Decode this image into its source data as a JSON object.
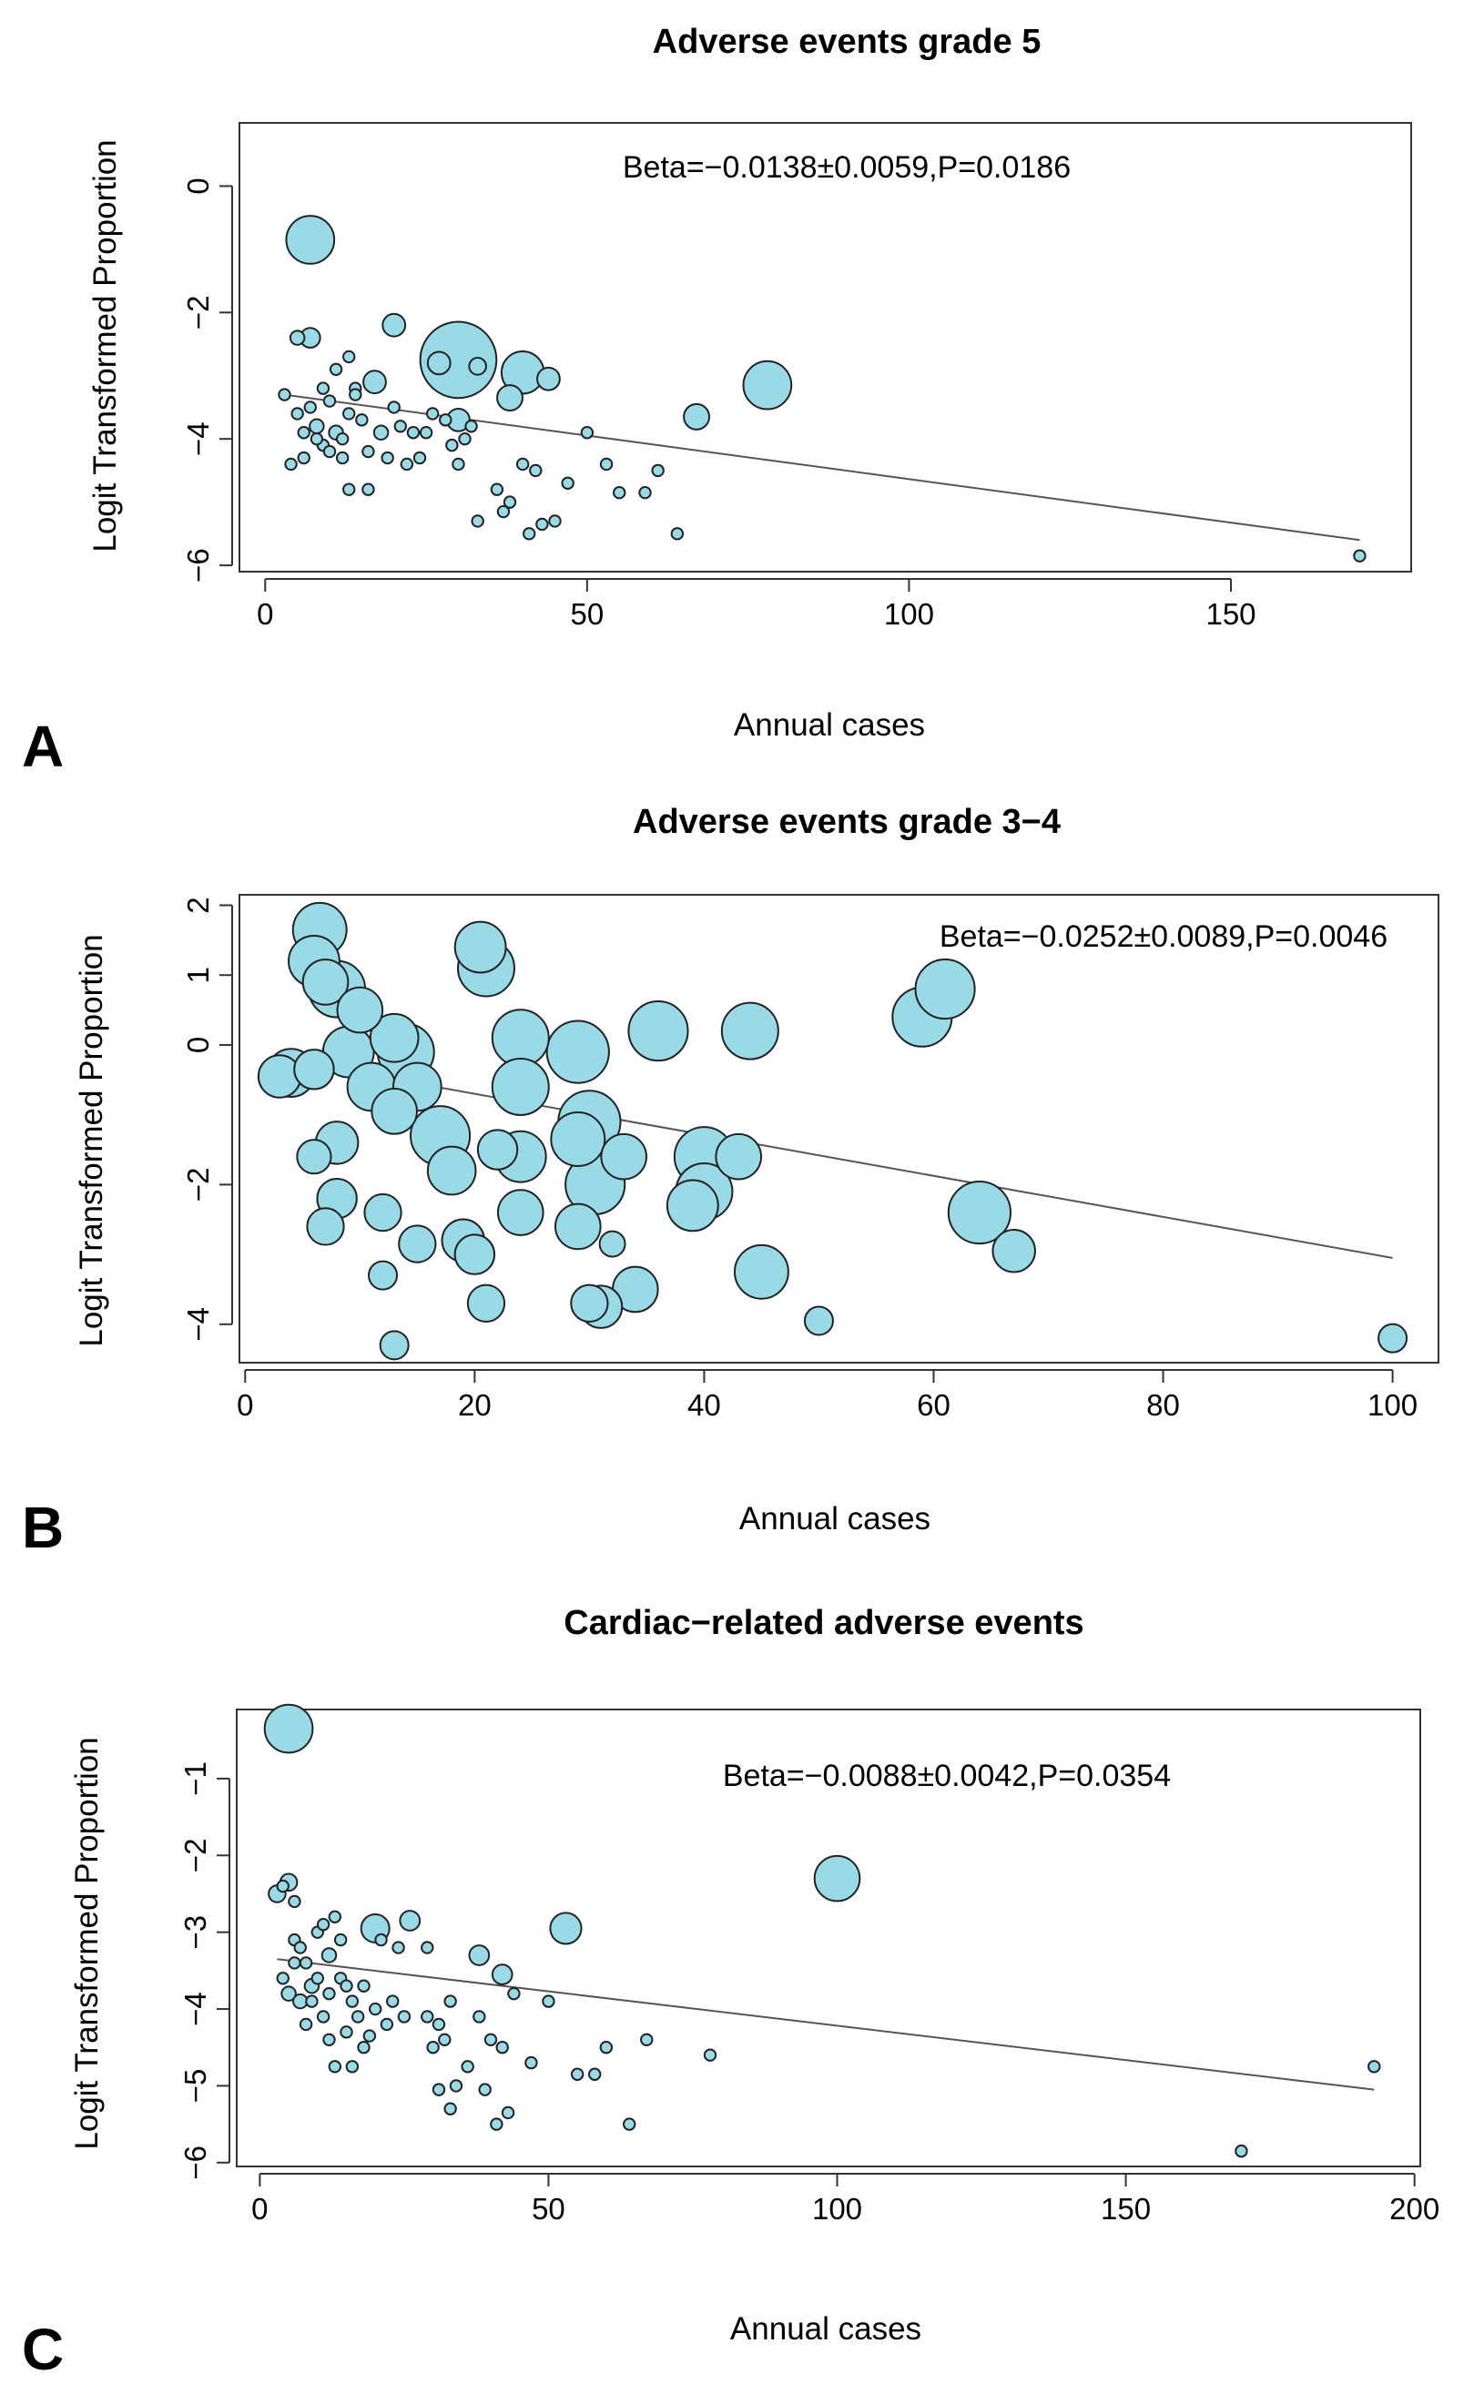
{
  "chart_data": [
    {
      "type": "scatter",
      "panel": "A",
      "title": "Adverse events grade 5",
      "xlabel": "Annual cases",
      "ylabel": "Logit Transformed Proportion",
      "annotation": "Beta=−0.0138±0.0059,P=0.0186",
      "xlim": [
        -4,
        178
      ],
      "ylim": [
        -6.1,
        1.0
      ],
      "xticks": [
        0,
        50,
        100,
        150
      ],
      "xtick_labels": [
        "0",
        "50",
        "100",
        "150"
      ],
      "yticks": [
        0,
        -2,
        -4,
        -6
      ],
      "ytick_labels": [
        "0",
        "−2",
        "−4",
        "−6"
      ],
      "marker_color": "#9ad9e6",
      "regression": {
        "x1": 3,
        "y1": -3.3,
        "x2": 170,
        "y2": -5.6
      },
      "points": [
        {
          "x": 7,
          "y": -0.85,
          "r": 17
        },
        {
          "x": 30,
          "y": -2.75,
          "r": 27
        },
        {
          "x": 40,
          "y": -2.95,
          "r": 15
        },
        {
          "x": 78,
          "y": -3.15,
          "r": 17
        },
        {
          "x": 38,
          "y": -3.35,
          "r": 9
        },
        {
          "x": 44,
          "y": -3.05,
          "r": 8
        },
        {
          "x": 20,
          "y": -2.2,
          "r": 8
        },
        {
          "x": 7,
          "y": -2.4,
          "r": 7
        },
        {
          "x": 67,
          "y": -3.65,
          "r": 9
        },
        {
          "x": 17,
          "y": -3.1,
          "r": 8
        },
        {
          "x": 5,
          "y": -2.4,
          "r": 5
        },
        {
          "x": 27,
          "y": -2.8,
          "r": 8
        },
        {
          "x": 33,
          "y": -2.85,
          "r": 6
        },
        {
          "x": 30,
          "y": -3.7,
          "r": 8
        },
        {
          "x": 3,
          "y": -3.3,
          "r": 4
        },
        {
          "x": 5,
          "y": -3.6,
          "r": 4
        },
        {
          "x": 6,
          "y": -3.9,
          "r": 4
        },
        {
          "x": 7,
          "y": -3.5,
          "r": 4
        },
        {
          "x": 8,
          "y": -3.8,
          "r": 5
        },
        {
          "x": 9,
          "y": -4.1,
          "r": 4
        },
        {
          "x": 10,
          "y": -3.4,
          "r": 4
        },
        {
          "x": 11,
          "y": -3.9,
          "r": 5
        },
        {
          "x": 12,
          "y": -4.0,
          "r": 4
        },
        {
          "x": 13,
          "y": -3.6,
          "r": 4
        },
        {
          "x": 14,
          "y": -3.2,
          "r": 4
        },
        {
          "x": 15,
          "y": -3.7,
          "r": 4
        },
        {
          "x": 16,
          "y": -4.2,
          "r": 4
        },
        {
          "x": 18,
          "y": -3.9,
          "r": 5
        },
        {
          "x": 19,
          "y": -4.3,
          "r": 4
        },
        {
          "x": 20,
          "y": -3.5,
          "r": 4
        },
        {
          "x": 21,
          "y": -3.8,
          "r": 4
        },
        {
          "x": 22,
          "y": -4.4,
          "r": 4
        },
        {
          "x": 23,
          "y": -3.9,
          "r": 4
        },
        {
          "x": 25,
          "y": -3.9,
          "r": 4
        },
        {
          "x": 24,
          "y": -4.3,
          "r": 4
        },
        {
          "x": 26,
          "y": -3.6,
          "r": 4
        },
        {
          "x": 28,
          "y": -3.7,
          "r": 4
        },
        {
          "x": 29,
          "y": -4.1,
          "r": 4
        },
        {
          "x": 30,
          "y": -4.4,
          "r": 4
        },
        {
          "x": 31,
          "y": -4.0,
          "r": 4
        },
        {
          "x": 32,
          "y": -3.8,
          "r": 4
        },
        {
          "x": 4,
          "y": -4.4,
          "r": 4
        },
        {
          "x": 6,
          "y": -4.3,
          "r": 4
        },
        {
          "x": 8,
          "y": -4.0,
          "r": 4
        },
        {
          "x": 10,
          "y": -4.2,
          "r": 4
        },
        {
          "x": 12,
          "y": -4.3,
          "r": 4
        },
        {
          "x": 13,
          "y": -4.8,
          "r": 4
        },
        {
          "x": 16,
          "y": -4.8,
          "r": 4
        },
        {
          "x": 11,
          "y": -2.9,
          "r": 4
        },
        {
          "x": 9,
          "y": -3.2,
          "r": 4
        },
        {
          "x": 14,
          "y": -3.3,
          "r": 4
        },
        {
          "x": 13,
          "y": -2.7,
          "r": 4
        },
        {
          "x": 33,
          "y": -5.3,
          "r": 4
        },
        {
          "x": 36,
          "y": -4.8,
          "r": 4
        },
        {
          "x": 37,
          "y": -5.15,
          "r": 4
        },
        {
          "x": 38,
          "y": -5.0,
          "r": 4
        },
        {
          "x": 40,
          "y": -4.4,
          "r": 4
        },
        {
          "x": 41,
          "y": -5.5,
          "r": 4
        },
        {
          "x": 42,
          "y": -4.5,
          "r": 4
        },
        {
          "x": 43,
          "y": -5.35,
          "r": 4
        },
        {
          "x": 45,
          "y": -5.3,
          "r": 4
        },
        {
          "x": 47,
          "y": -4.7,
          "r": 4
        },
        {
          "x": 50,
          "y": -3.9,
          "r": 4
        },
        {
          "x": 53,
          "y": -4.4,
          "r": 4
        },
        {
          "x": 55,
          "y": -4.85,
          "r": 4
        },
        {
          "x": 59,
          "y": -4.85,
          "r": 4
        },
        {
          "x": 61,
          "y": -4.5,
          "r": 4
        },
        {
          "x": 64,
          "y": -5.5,
          "r": 4
        },
        {
          "x": 170,
          "y": -5.85,
          "r": 4
        }
      ]
    },
    {
      "type": "scatter",
      "panel": "B",
      "title": "Adverse events grade 3−4",
      "xlabel": "Annual cases",
      "ylabel": "Logit Transformed Proportion",
      "annotation": "Beta=−0.0252±0.0089,P=0.0046",
      "xlim": [
        -0.5,
        104
      ],
      "ylim": [
        -4.55,
        2.15
      ],
      "xticks": [
        0,
        20,
        40,
        60,
        80,
        100
      ],
      "xtick_labels": [
        "0",
        "20",
        "40",
        "60",
        "80",
        "100"
      ],
      "yticks": [
        2,
        1,
        0,
        -2,
        -4
      ],
      "ytick_labels": [
        "2",
        "1",
        "0",
        "−2",
        "−4"
      ],
      "marker_color": "#9ad9e6",
      "regression": {
        "x1": 3,
        "y1": -0.2,
        "x2": 100,
        "y2": -3.05
      },
      "points": [
        {
          "x": 3,
          "y": -0.45,
          "r": 15
        },
        {
          "x": 4,
          "y": -0.4,
          "r": 17
        },
        {
          "x": 6,
          "y": 1.2,
          "r": 18
        },
        {
          "x": 6.5,
          "y": 1.65,
          "r": 19
        },
        {
          "x": 7,
          "y": 0.9,
          "r": 16
        },
        {
          "x": 8,
          "y": 0.8,
          "r": 20
        },
        {
          "x": 6,
          "y": -0.35,
          "r": 14
        },
        {
          "x": 6,
          "y": -1.6,
          "r": 12
        },
        {
          "x": 7,
          "y": -2.6,
          "r": 13
        },
        {
          "x": 8,
          "y": -2.2,
          "r": 14
        },
        {
          "x": 8,
          "y": -1.4,
          "r": 15
        },
        {
          "x": 9,
          "y": -0.1,
          "r": 18
        },
        {
          "x": 10,
          "y": 0.5,
          "r": 16
        },
        {
          "x": 11,
          "y": -0.6,
          "r": 17
        },
        {
          "x": 12,
          "y": -2.4,
          "r": 13
        },
        {
          "x": 12,
          "y": -3.3,
          "r": 10
        },
        {
          "x": 13,
          "y": -4.3,
          "r": 10
        },
        {
          "x": 13,
          "y": 0.1,
          "r": 17
        },
        {
          "x": 14,
          "y": -0.1,
          "r": 20
        },
        {
          "x": 15,
          "y": -0.6,
          "r": 17
        },
        {
          "x": 13,
          "y": -0.95,
          "r": 16
        },
        {
          "x": 15,
          "y": -2.85,
          "r": 13
        },
        {
          "x": 17,
          "y": -1.3,
          "r": 21
        },
        {
          "x": 18,
          "y": -1.8,
          "r": 17
        },
        {
          "x": 19,
          "y": -2.8,
          "r": 15
        },
        {
          "x": 20,
          "y": -3.0,
          "r": 14
        },
        {
          "x": 21,
          "y": 1.1,
          "r": 20
        },
        {
          "x": 20.5,
          "y": 1.4,
          "r": 18
        },
        {
          "x": 21,
          "y": -3.7,
          "r": 13
        },
        {
          "x": 22,
          "y": -1.5,
          "r": 14
        },
        {
          "x": 24,
          "y": 0.1,
          "r": 20
        },
        {
          "x": 24,
          "y": -0.6,
          "r": 20
        },
        {
          "x": 24,
          "y": -1.6,
          "r": 18
        },
        {
          "x": 24,
          "y": -2.4,
          "r": 16
        },
        {
          "x": 29,
          "y": -0.1,
          "r": 22
        },
        {
          "x": 29,
          "y": -1.35,
          "r": 19
        },
        {
          "x": 29,
          "y": -2.6,
          "r": 16
        },
        {
          "x": 30,
          "y": -1.1,
          "r": 22
        },
        {
          "x": 30.5,
          "y": -2.0,
          "r": 21
        },
        {
          "x": 30,
          "y": -3.7,
          "r": 13
        },
        {
          "x": 31,
          "y": -3.75,
          "r": 15
        },
        {
          "x": 32,
          "y": -2.85,
          "r": 9
        },
        {
          "x": 33,
          "y": -1.6,
          "r": 16
        },
        {
          "x": 34,
          "y": -3.5,
          "r": 16
        },
        {
          "x": 36,
          "y": 0.2,
          "r": 21
        },
        {
          "x": 39,
          "y": -2.3,
          "r": 18
        },
        {
          "x": 40,
          "y": -1.6,
          "r": 21
        },
        {
          "x": 40,
          "y": -2.1,
          "r": 20
        },
        {
          "x": 43,
          "y": -1.6,
          "r": 16
        },
        {
          "x": 44,
          "y": 0.2,
          "r": 20
        },
        {
          "x": 45,
          "y": -3.25,
          "r": 19
        },
        {
          "x": 50,
          "y": -3.95,
          "r": 10
        },
        {
          "x": 59,
          "y": 0.4,
          "r": 21
        },
        {
          "x": 61,
          "y": 0.8,
          "r": 21
        },
        {
          "x": 64,
          "y": -2.4,
          "r": 22
        },
        {
          "x": 67,
          "y": -2.95,
          "r": 15
        },
        {
          "x": 100,
          "y": -4.2,
          "r": 10
        }
      ]
    },
    {
      "type": "scatter",
      "panel": "C",
      "title": "Cardiac−related adverse events",
      "xlabel": "Annual cases",
      "ylabel": "Logit Transformed Proportion",
      "annotation": "Beta=−0.0088±0.0042,P=0.0354",
      "xlim": [
        -4,
        201
      ],
      "ylim": [
        -6.05,
        -0.1
      ],
      "xticks": [
        0,
        50,
        100,
        150,
        200
      ],
      "xtick_labels": [
        "0",
        "50",
        "100",
        "150",
        "200"
      ],
      "yticks": [
        -1,
        -2,
        -3,
        -4,
        -5,
        -6
      ],
      "ytick_labels": [
        "−1",
        "−2",
        "−3",
        "−4",
        "−5",
        "−6"
      ],
      "marker_color": "#9ad9e6",
      "regression": {
        "x1": 3,
        "y1": -3.35,
        "x2": 193,
        "y2": -5.05
      },
      "points": [
        {
          "x": 5,
          "y": -0.35,
          "r": 17
        },
        {
          "x": 100,
          "y": -2.3,
          "r": 16
        },
        {
          "x": 53,
          "y": -2.95,
          "r": 11
        },
        {
          "x": 20,
          "y": -2.95,
          "r": 10
        },
        {
          "x": 26,
          "y": -2.85,
          "r": 7
        },
        {
          "x": 38,
          "y": -3.3,
          "r": 7
        },
        {
          "x": 42,
          "y": -3.55,
          "r": 7
        },
        {
          "x": 3,
          "y": -2.5,
          "r": 6
        },
        {
          "x": 5,
          "y": -2.35,
          "r": 6
        },
        {
          "x": 4,
          "y": -2.4,
          "r": 4
        },
        {
          "x": 6,
          "y": -2.6,
          "r": 4
        },
        {
          "x": 4,
          "y": -3.6,
          "r": 4
        },
        {
          "x": 5,
          "y": -3.8,
          "r": 5
        },
        {
          "x": 6,
          "y": -3.4,
          "r": 4
        },
        {
          "x": 7,
          "y": -3.9,
          "r": 5
        },
        {
          "x": 8,
          "y": -4.2,
          "r": 4
        },
        {
          "x": 9,
          "y": -3.7,
          "r": 5
        },
        {
          "x": 10,
          "y": -3.0,
          "r": 4
        },
        {
          "x": 11,
          "y": -4.1,
          "r": 4
        },
        {
          "x": 12,
          "y": -3.3,
          "r": 5
        },
        {
          "x": 13,
          "y": -2.8,
          "r": 4
        },
        {
          "x": 14,
          "y": -3.6,
          "r": 4
        },
        {
          "x": 15,
          "y": -4.3,
          "r": 4
        },
        {
          "x": 16,
          "y": -3.9,
          "r": 4
        },
        {
          "x": 17,
          "y": -4.1,
          "r": 4
        },
        {
          "x": 18,
          "y": -3.7,
          "r": 4
        },
        {
          "x": 19,
          "y": -4.35,
          "r": 4
        },
        {
          "x": 20,
          "y": -4.0,
          "r": 4
        },
        {
          "x": 21,
          "y": -3.1,
          "r": 4
        },
        {
          "x": 22,
          "y": -4.2,
          "r": 4
        },
        {
          "x": 23,
          "y": -3.9,
          "r": 4
        },
        {
          "x": 24,
          "y": -3.2,
          "r": 4
        },
        {
          "x": 25,
          "y": -4.1,
          "r": 4
        },
        {
          "x": 29,
          "y": -3.2,
          "r": 4
        },
        {
          "x": 29,
          "y": -4.1,
          "r": 4
        },
        {
          "x": 30,
          "y": -4.5,
          "r": 4
        },
        {
          "x": 31,
          "y": -4.2,
          "r": 4
        },
        {
          "x": 32,
          "y": -4.4,
          "r": 4
        },
        {
          "x": 33,
          "y": -3.9,
          "r": 4
        },
        {
          "x": 31,
          "y": -5.05,
          "r": 4
        },
        {
          "x": 33,
          "y": -5.3,
          "r": 4
        },
        {
          "x": 34,
          "y": -5.0,
          "r": 4
        },
        {
          "x": 36,
          "y": -4.75,
          "r": 4
        },
        {
          "x": 38,
          "y": -4.1,
          "r": 4
        },
        {
          "x": 39,
          "y": -5.05,
          "r": 4
        },
        {
          "x": 40,
          "y": -4.4,
          "r": 4
        },
        {
          "x": 41,
          "y": -5.5,
          "r": 4
        },
        {
          "x": 42,
          "y": -4.5,
          "r": 4
        },
        {
          "x": 43,
          "y": -5.35,
          "r": 4
        },
        {
          "x": 44,
          "y": -3.8,
          "r": 4
        },
        {
          "x": 47,
          "y": -4.7,
          "r": 4
        },
        {
          "x": 50,
          "y": -3.9,
          "r": 4
        },
        {
          "x": 55,
          "y": -4.85,
          "r": 4
        },
        {
          "x": 58,
          "y": -4.85,
          "r": 4
        },
        {
          "x": 60,
          "y": -4.5,
          "r": 4
        },
        {
          "x": 64,
          "y": -5.5,
          "r": 4
        },
        {
          "x": 67,
          "y": -4.4,
          "r": 4
        },
        {
          "x": 78,
          "y": -4.6,
          "r": 4
        },
        {
          "x": 170,
          "y": -5.85,
          "r": 4
        },
        {
          "x": 193,
          "y": -4.75,
          "r": 4
        },
        {
          "x": 6,
          "y": -3.1,
          "r": 4
        },
        {
          "x": 8,
          "y": -3.4,
          "r": 4
        },
        {
          "x": 10,
          "y": -3.6,
          "r": 4
        },
        {
          "x": 12,
          "y": -4.4,
          "r": 4
        },
        {
          "x": 13,
          "y": -4.75,
          "r": 4
        },
        {
          "x": 16,
          "y": -4.75,
          "r": 4
        },
        {
          "x": 18,
          "y": -4.5,
          "r": 4
        },
        {
          "x": 11,
          "y": -2.9,
          "r": 4
        },
        {
          "x": 9,
          "y": -3.9,
          "r": 4
        },
        {
          "x": 7,
          "y": -3.2,
          "r": 4
        },
        {
          "x": 14,
          "y": -3.1,
          "r": 4
        },
        {
          "x": 12,
          "y": -3.8,
          "r": 4
        },
        {
          "x": 15,
          "y": -3.7,
          "r": 4
        }
      ]
    }
  ]
}
